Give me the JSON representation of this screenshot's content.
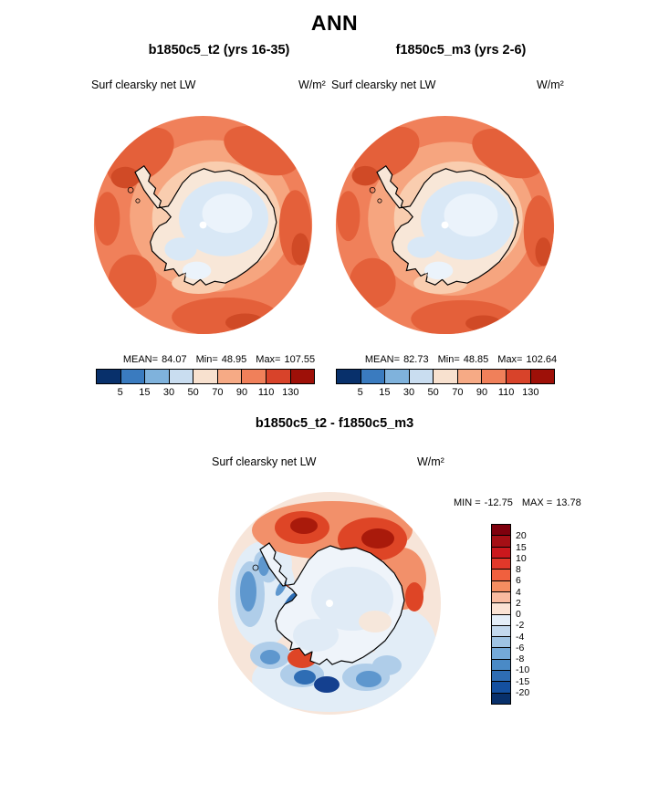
{
  "title": "ANN",
  "panels": [
    {
      "title": "b1850c5_t2 (yrs 16-35)",
      "variable": "Surf clearsky net LW",
      "units": "W/m²",
      "stats": {
        "mean_label": "MEAN=",
        "mean": "84.07",
        "min_label": "Min=",
        "min": "48.95",
        "max_label": "Max=",
        "max": "107.55"
      }
    },
    {
      "title": "f1850c5_m3 (yrs 2-6)",
      "variable": "Surf clearsky net LW",
      "units": "W/m²",
      "stats": {
        "mean_label": "MEAN=",
        "mean": "82.73",
        "min_label": "Min=",
        "min": "48.85",
        "max_label": "Max=",
        "max": "102.64"
      }
    },
    {
      "title": "b1850c5_t2 - f1850c5_m3",
      "variable": "Surf clearsky net LW",
      "units": "W/m²",
      "stats": {
        "min_label": "MIN =",
        "min": "-12.75",
        "max_label": "MAX =",
        "max": "13.78"
      }
    }
  ],
  "colorbars": {
    "absolute": {
      "orientation": "horizontal",
      "tick_labels": [
        "5",
        "15",
        "30",
        "50",
        "70",
        "90",
        "110",
        "130"
      ],
      "colors": [
        "#08306B",
        "#3A7BBF",
        "#7FB2DC",
        "#C9DDF0",
        "#F8E1CF",
        "#F6AA85",
        "#F0805A",
        "#D8432A",
        "#9E1008"
      ]
    },
    "difference": {
      "orientation": "vertical",
      "tick_labels": [
        "20",
        "15",
        "10",
        "8",
        "6",
        "4",
        "2",
        "0",
        "-2",
        "-4",
        "-6",
        "-8",
        "-10",
        "-15",
        "-20"
      ],
      "colors": [
        "#7F000D",
        "#A50F15",
        "#CB181D",
        "#E2382A",
        "#F0603E",
        "#F58D61",
        "#F9BBA0",
        "#FBE3D4",
        "#E4EEF8",
        "#C3D9EE",
        "#9FC4E4",
        "#74A9D8",
        "#4A8AC6",
        "#2E6DB4",
        "#1450A0",
        "#08306B"
      ]
    }
  },
  "palette": {
    "ocean": "#F0805A",
    "ocean_light": "#F6A57F",
    "ocean_fringe": "#F9CDAF",
    "ocean_dark": "#E4603A",
    "ocean_darker": "#D04A26",
    "land": "#F8E7D8",
    "ice_blue": "#D9E8F6",
    "ice_blue_light": "#EBF3FB",
    "pole": "#FFFFFF",
    "diff_base": "#F7E5D9",
    "diff_pale_blue": "#E2EDF7",
    "diff_light_blue": "#AFCDE9",
    "diff_blue": "#5E97CE",
    "diff_blue_dark": "#2E6DB4",
    "diff_navy": "#14408F",
    "diff_orange": "#F2906A",
    "diff_red": "#DE4526",
    "diff_red_dark": "#A91A0B",
    "diff_land": "#EFF4FA",
    "diff_land_blue": "#E0EBF6",
    "diff_land_pink": "#F6E7DB"
  },
  "chart_data": {
    "type": "heatmap",
    "subtype": "south-polar-stereographic-contour-maps",
    "title": "ANN",
    "region": "Antarctica / Southern Ocean",
    "legend_position": "horizontal bars below top maps; vertical bar right of difference map",
    "maps": [
      {
        "name": "b1850c5_t2 (yrs 16-35)",
        "variable": "Surf clearsky net LW",
        "units": "W/m²",
        "mean": 84.07,
        "min": 48.95,
        "max": 107.55,
        "contour_levels": [
          5,
          15,
          30,
          50,
          70,
          90,
          110,
          130
        ]
      },
      {
        "name": "f1850c5_m3 (yrs 2-6)",
        "variable": "Surf clearsky net LW",
        "units": "W/m²",
        "mean": 82.73,
        "min": 48.85,
        "max": 102.64,
        "contour_levels": [
          5,
          15,
          30,
          50,
          70,
          90,
          110,
          130
        ]
      },
      {
        "name": "b1850c5_t2 - f1850c5_m3",
        "variable": "Surf clearsky net LW",
        "units": "W/m²",
        "min": -12.75,
        "max": 13.78,
        "contour_levels": [
          -20,
          -15,
          -10,
          -8,
          -6,
          -4,
          -2,
          0,
          2,
          4,
          6,
          8,
          10,
          15,
          20
        ]
      }
    ]
  }
}
